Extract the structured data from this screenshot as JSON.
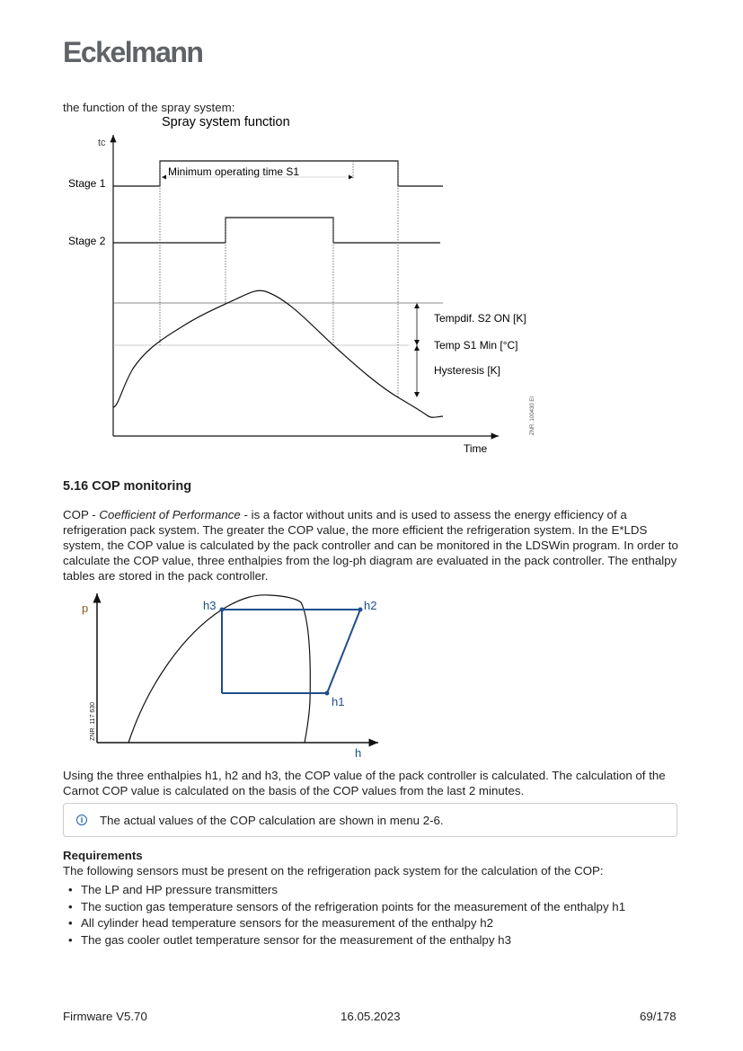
{
  "header": {
    "logo": "Eckelmann"
  },
  "intro": "the function of the spray system:",
  "spray_diagram": {
    "title": "Spray system function",
    "y_label": "tc",
    "x_label": "Time",
    "stage1": "Stage 1",
    "stage2": "Stage 2",
    "min_time": "Minimum operating time S1",
    "tempdif": "Tempdif. S2 ON [K]",
    "temp_min": "Temp S1 Min [°C]",
    "hysteresis": "Hysteresis [K]",
    "ref": "ZNR. 100430 EI"
  },
  "section": {
    "title": "5.16  COP monitoring",
    "p1_a": "COP - ",
    "p1_italic": "Coefficient of Performance",
    "p1_b": " - is a factor without units and is used to assess the energy efficiency of a refrigeration pack system. The greater the COP value, the more efficient the refrigeration system. In the E*LDS system, the COP value is calculated by the pack controller and can be monitored in the LDSWin program. In order to calculate the COP value, three enthalpies from the log-ph diagram are evaluated in the pack controller. The enthalpy tables are stored in the pack controller."
  },
  "ph_diagram": {
    "y_label": "p",
    "x_label": "h",
    "h1": "h1",
    "h2": "h2",
    "h3": "h3",
    "ref": "ZNR. 117 630",
    "cycle_color": "#1f4e8c",
    "p_color": "#8a5a1e"
  },
  "p2": "Using the three enthalpies h1, h2 and h3, the COP value of the pack controller is calculated. The calculation of the Carnot COP value is calculated on the basis of the COP values from the last 2 minutes.",
  "note": {
    "icon": "info-icon",
    "text": "The actual values of the COP calculation are shown in menu 2-6."
  },
  "requirements": {
    "title": "Requirements",
    "intro": "The following sensors must be present on the refrigeration pack system for the calculation of the COP:",
    "items": [
      "The LP and HP pressure transmitters",
      "The suction gas temperature sensors of the refrigeration points for the measurement of the enthalpy h1",
      "All cylinder head temperature sensors for the measurement of the enthalpy h2",
      "The gas cooler outlet temperature sensor for the measurement of the enthalpy h3"
    ]
  },
  "footer": {
    "firmware": "Firmware V5.70",
    "date": "16.05.2023",
    "page": "69/178"
  }
}
